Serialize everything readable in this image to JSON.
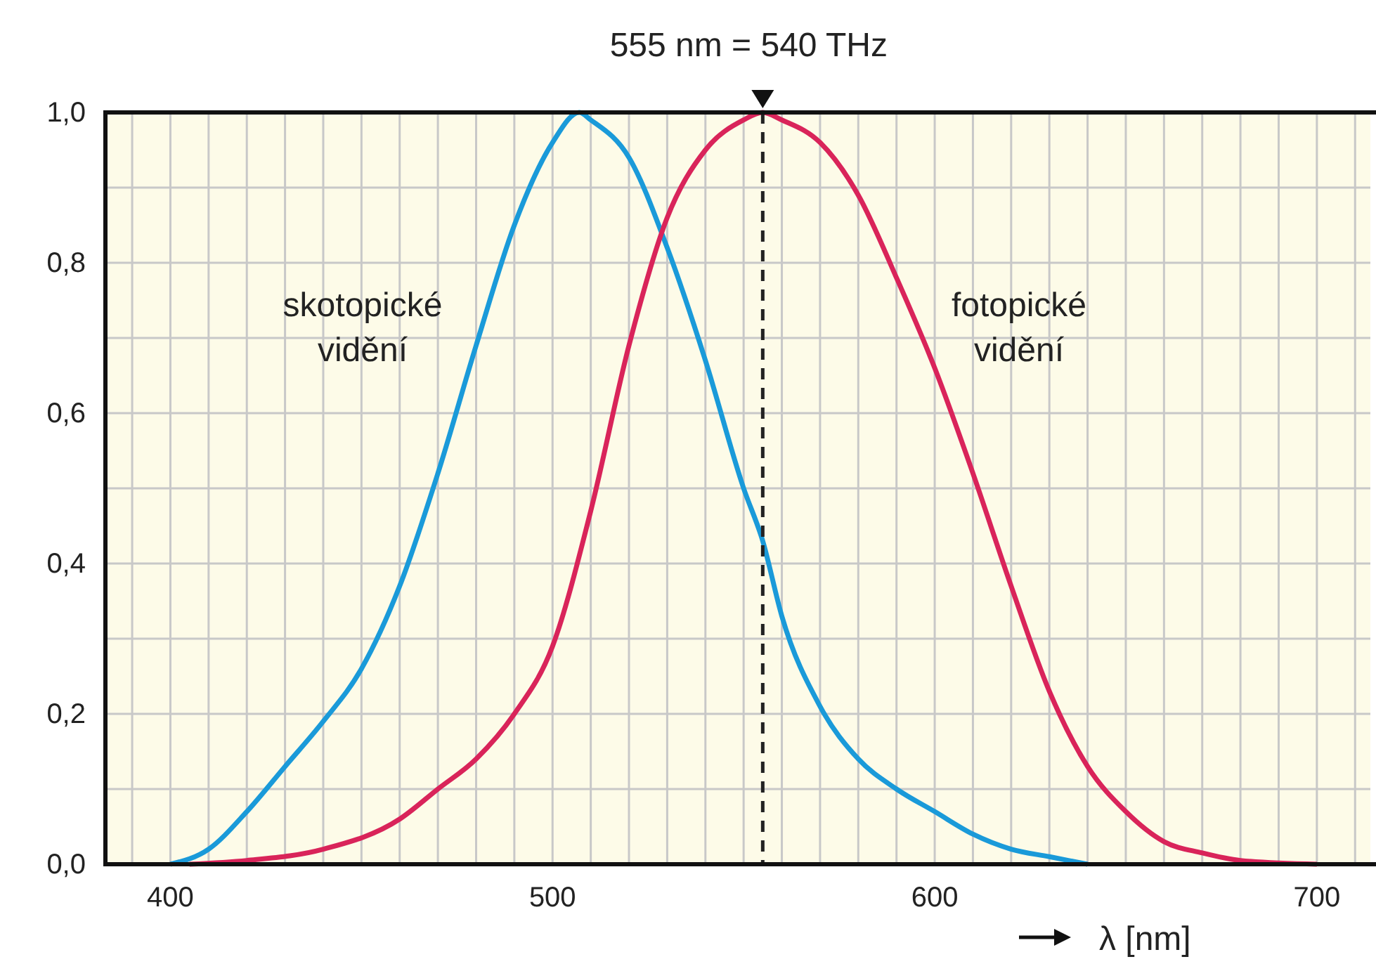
{
  "chart_data": {
    "type": "line",
    "xlabel": "λ [nm]",
    "xlim": [
      383,
      714
    ],
    "xticks": [
      {
        "value": 390,
        "label": null
      },
      400,
      {
        "value": 410,
        "label": null
      },
      {
        "value": 420,
        "label": null
      },
      {
        "value": 430,
        "label": null
      },
      {
        "value": 440,
        "label": null
      },
      {
        "value": 450,
        "label": null
      },
      {
        "value": 460,
        "label": null
      },
      {
        "value": 470,
        "label": null
      },
      {
        "value": 480,
        "label": null
      },
      {
        "value": 490,
        "label": null
      },
      500,
      {
        "value": 510,
        "label": null
      },
      {
        "value": 520,
        "label": null
      },
      {
        "value": 530,
        "label": null
      },
      {
        "value": 540,
        "label": null
      },
      {
        "value": 550,
        "label": null
      },
      {
        "value": 560,
        "label": null
      },
      {
        "value": 570,
        "label": null
      },
      {
        "value": 580,
        "label": null
      },
      {
        "value": 590,
        "label": null
      },
      600,
      {
        "value": 610,
        "label": null
      },
      {
        "value": 620,
        "label": null
      },
      {
        "value": 630,
        "label": null
      },
      {
        "value": 640,
        "label": null
      },
      {
        "value": 650,
        "label": null
      },
      {
        "value": 660,
        "label": null
      },
      {
        "value": 670,
        "label": null
      },
      {
        "value": 680,
        "label": null
      },
      {
        "value": 690,
        "label": null
      },
      700,
      {
        "value": 710,
        "label": null
      }
    ],
    "ylim": [
      0,
      1
    ],
    "yticks": [
      {
        "value": 0,
        "label": "0,0"
      },
      {
        "value": 0.1,
        "label": null
      },
      {
        "value": 0.2,
        "label": "0,2"
      },
      {
        "value": 0.3,
        "label": null
      },
      {
        "value": 0.4,
        "label": "0,4"
      },
      {
        "value": 0.5,
        "label": null
      },
      {
        "value": 0.6,
        "label": "0,6"
      },
      {
        "value": 0.7,
        "label": null
      },
      {
        "value": 0.8,
        "label": "0,8"
      },
      {
        "value": 0.9,
        "label": null
      },
      {
        "value": 1,
        "label": "1,0"
      }
    ],
    "grid": true,
    "marker": "none",
    "line_style": "solid",
    "series": [
      {
        "color": "#1a9ad9",
        "x": [
          400,
          410,
          420,
          430,
          440,
          450,
          460,
          470,
          480,
          490,
          500,
          507,
          510,
          520,
          530,
          540,
          550,
          555,
          560,
          570,
          580,
          590,
          600,
          610,
          620,
          630,
          640
        ],
        "values": [
          0,
          0.02,
          0.07,
          0.13,
          0.19,
          0.26,
          0.37,
          0.52,
          0.69,
          0.85,
          0.96,
          1.0,
          0.99,
          0.94,
          0.82,
          0.67,
          0.5,
          0.43,
          0.33,
          0.21,
          0.14,
          0.1,
          0.07,
          0.04,
          0.02,
          0.01,
          0
        ]
      },
      {
        "color": "#d9245a",
        "x": [
          405,
          420,
          440,
          460,
          470,
          480,
          490,
          500,
          510,
          520,
          530,
          540,
          550,
          555,
          560,
          570,
          580,
          590,
          600,
          610,
          620,
          630,
          640,
          650,
          660,
          670,
          680,
          700
        ],
        "values": [
          0,
          0.005,
          0.02,
          0.06,
          0.1,
          0.14,
          0.2,
          0.29,
          0.47,
          0.69,
          0.86,
          0.95,
          0.99,
          1.0,
          0.99,
          0.96,
          0.89,
          0.78,
          0.66,
          0.52,
          0.37,
          0.23,
          0.13,
          0.07,
          0.03,
          0.015,
          0.005,
          0
        ]
      }
    ],
    "ref_lines": [
      {
        "axis": "x",
        "value": 555,
        "label": "555 nm = 540 THz",
        "line_style": "dashed",
        "color": "#222222"
      }
    ],
    "annotations": [
      "skotopické\nvidění",
      "fotopické\nvidění"
    ]
  }
}
